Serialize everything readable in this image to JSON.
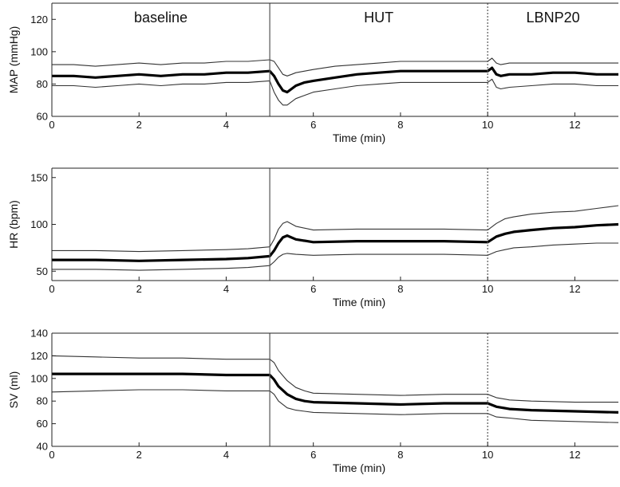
{
  "chart_data": [
    {
      "type": "line",
      "ylabel": "MAP (mmHg)",
      "xlabel": "Time (min)",
      "xlim": [
        0,
        13
      ],
      "ylim": [
        60,
        130
      ],
      "xticks": [
        0,
        2,
        4,
        6,
        8,
        10,
        12
      ],
      "yticks": [
        60,
        80,
        100,
        120
      ],
      "phase_dividers": [
        {
          "x": 5,
          "style": "solid"
        },
        {
          "x": 10,
          "style": "dotted"
        }
      ],
      "phase_labels": [
        {
          "text": "baseline",
          "x": 2.5
        },
        {
          "text": "HUT",
          "x": 7.5
        },
        {
          "text": "LBNP20",
          "x": 11.5
        }
      ],
      "series": [
        {
          "role": "mean",
          "x": [
            0,
            0.5,
            1,
            1.5,
            2,
            2.5,
            3,
            3.5,
            4,
            4.5,
            5,
            5.1,
            5.2,
            5.3,
            5.4,
            5.5,
            5.6,
            5.8,
            6,
            6.5,
            7,
            7.5,
            8,
            8.5,
            9,
            9.5,
            10,
            10.1,
            10.2,
            10.3,
            10.5,
            11,
            11.5,
            12,
            12.5,
            13
          ],
          "y": [
            85,
            85,
            84,
            85,
            86,
            85,
            86,
            86,
            87,
            87,
            88,
            85,
            80,
            76,
            75,
            77,
            79,
            81,
            82,
            84,
            86,
            87,
            88,
            88,
            88,
            88,
            88,
            90,
            86,
            85,
            86,
            86,
            87,
            87,
            86,
            86
          ]
        },
        {
          "role": "upper",
          "x": [
            0,
            0.5,
            1,
            1.5,
            2,
            2.5,
            3,
            3.5,
            4,
            4.5,
            5,
            5.1,
            5.2,
            5.3,
            5.4,
            5.5,
            5.6,
            5.8,
            6,
            6.5,
            7,
            7.5,
            8,
            8.5,
            9,
            9.5,
            10,
            10.1,
            10.2,
            10.3,
            10.5,
            11,
            11.5,
            12,
            12.5,
            13
          ],
          "y": [
            92,
            92,
            91,
            92,
            93,
            92,
            93,
            93,
            94,
            94,
            95,
            94,
            90,
            86,
            85,
            86,
            87,
            88,
            89,
            91,
            92,
            93,
            94,
            94,
            94,
            94,
            94,
            96,
            93,
            92,
            93,
            93,
            93,
            93,
            93,
            93
          ]
        },
        {
          "role": "lower",
          "x": [
            0,
            0.5,
            1,
            1.5,
            2,
            2.5,
            3,
            3.5,
            4,
            4.5,
            5,
            5.1,
            5.2,
            5.3,
            5.4,
            5.5,
            5.6,
            5.8,
            6,
            6.5,
            7,
            7.5,
            8,
            8.5,
            9,
            9.5,
            10,
            10.1,
            10.2,
            10.3,
            10.5,
            11,
            11.5,
            12,
            12.5,
            13
          ],
          "y": [
            79,
            79,
            78,
            79,
            80,
            79,
            80,
            80,
            81,
            81,
            82,
            75,
            70,
            67,
            67,
            69,
            71,
            73,
            75,
            77,
            79,
            80,
            81,
            81,
            81,
            81,
            81,
            83,
            78,
            77,
            78,
            79,
            80,
            80,
            79,
            79
          ]
        }
      ]
    },
    {
      "type": "line",
      "ylabel": "HR (bpm)",
      "xlabel": "Time (min)",
      "xlim": [
        0,
        13
      ],
      "ylim": [
        40,
        160
      ],
      "xticks": [
        0,
        2,
        4,
        6,
        8,
        10,
        12
      ],
      "yticks": [
        50,
        100,
        150
      ],
      "phase_dividers": [
        {
          "x": 5,
          "style": "solid"
        },
        {
          "x": 10,
          "style": "dotted"
        }
      ],
      "series": [
        {
          "role": "mean",
          "x": [
            0,
            1,
            2,
            3,
            4,
            4.5,
            5,
            5.1,
            5.2,
            5.3,
            5.4,
            5.6,
            6,
            7,
            8,
            9,
            10,
            10.2,
            10.4,
            10.6,
            11,
            11.5,
            12,
            12.5,
            13
          ],
          "y": [
            62,
            62,
            61,
            62,
            63,
            64,
            66,
            72,
            80,
            86,
            88,
            84,
            81,
            82,
            82,
            82,
            81,
            87,
            90,
            92,
            94,
            96,
            97,
            99,
            100
          ]
        },
        {
          "role": "upper",
          "x": [
            0,
            1,
            2,
            3,
            4,
            4.5,
            5,
            5.1,
            5.2,
            5.3,
            5.4,
            5.6,
            6,
            7,
            8,
            9,
            10,
            10.2,
            10.4,
            10.6,
            11,
            11.5,
            12,
            12.5,
            13
          ],
          "y": [
            72,
            72,
            71,
            72,
            73,
            74,
            76,
            84,
            95,
            101,
            103,
            98,
            94,
            95,
            95,
            95,
            94,
            101,
            106,
            108,
            111,
            113,
            114,
            117,
            120
          ]
        },
        {
          "role": "lower",
          "x": [
            0,
            1,
            2,
            3,
            4,
            4.5,
            5,
            5.1,
            5.2,
            5.3,
            5.4,
            5.6,
            6,
            7,
            8,
            9,
            10,
            10.2,
            10.4,
            10.6,
            11,
            11.5,
            12,
            12.5,
            13
          ],
          "y": [
            52,
            52,
            51,
            52,
            53,
            54,
            56,
            60,
            65,
            68,
            69,
            68,
            67,
            68,
            68,
            68,
            67,
            71,
            73,
            75,
            76,
            78,
            79,
            80,
            80
          ]
        }
      ]
    },
    {
      "type": "line",
      "ylabel": "SV (ml)",
      "xlabel": "Time (min)",
      "xlim": [
        0,
        13
      ],
      "ylim": [
        40,
        140
      ],
      "xticks": [
        0,
        2,
        4,
        6,
        8,
        10,
        12
      ],
      "yticks": [
        40,
        60,
        80,
        100,
        120,
        140
      ],
      "phase_dividers": [
        {
          "x": 5,
          "style": "solid"
        },
        {
          "x": 10,
          "style": "dotted"
        }
      ],
      "series": [
        {
          "role": "mean",
          "x": [
            0,
            1,
            2,
            3,
            4,
            5,
            5.1,
            5.2,
            5.4,
            5.6,
            5.8,
            6,
            7,
            8,
            9,
            10,
            10.2,
            10.5,
            11,
            12,
            13
          ],
          "y": [
            104,
            104,
            104,
            104,
            103,
            103,
            99,
            93,
            86,
            82,
            80,
            79,
            78,
            77,
            78,
            78,
            75,
            73,
            72,
            71,
            70
          ]
        },
        {
          "role": "upper",
          "x": [
            0,
            1,
            2,
            3,
            4,
            5,
            5.1,
            5.2,
            5.4,
            5.6,
            5.8,
            6,
            7,
            8,
            9,
            10,
            10.2,
            10.5,
            11,
            12,
            13
          ],
          "y": [
            120,
            119,
            118,
            118,
            117,
            117,
            114,
            107,
            98,
            92,
            89,
            87,
            86,
            85,
            86,
            86,
            83,
            81,
            80,
            79,
            79
          ]
        },
        {
          "role": "lower",
          "x": [
            0,
            1,
            2,
            3,
            4,
            5,
            5.1,
            5.2,
            5.4,
            5.6,
            5.8,
            6,
            7,
            8,
            9,
            10,
            10.2,
            10.5,
            11,
            12,
            13
          ],
          "y": [
            88,
            89,
            90,
            90,
            89,
            89,
            86,
            80,
            74,
            72,
            71,
            70,
            69,
            68,
            69,
            69,
            66,
            65,
            63,
            62,
            61
          ]
        }
      ]
    }
  ]
}
